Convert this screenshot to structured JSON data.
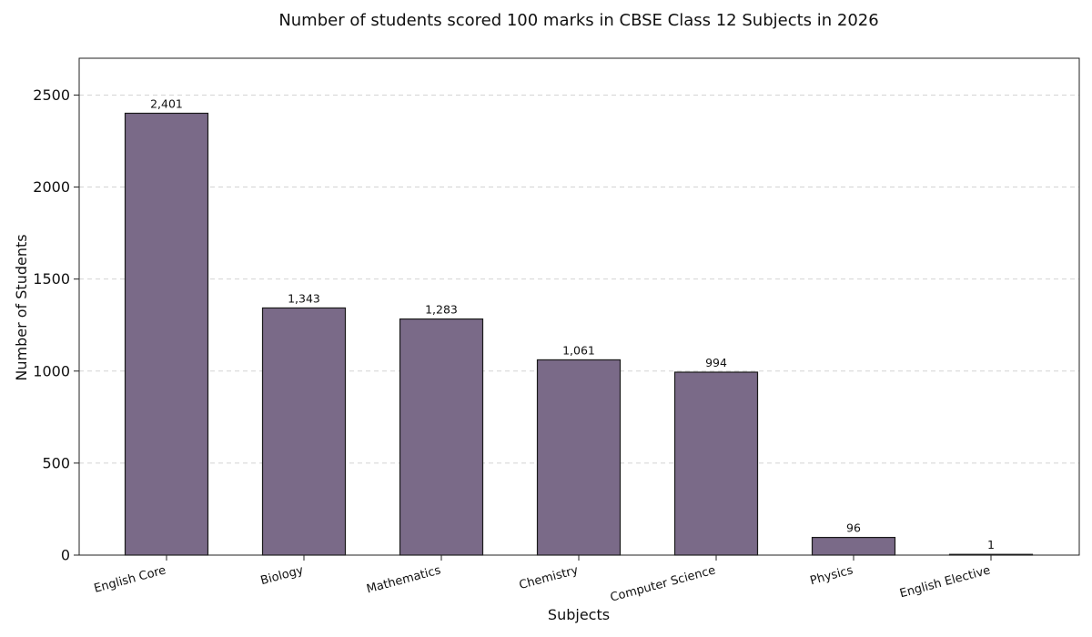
{
  "chart_data": {
    "type": "bar",
    "title": "Number of students scored 100 marks in CBSE Class 12 Subjects in 2026",
    "xlabel": "Subjects",
    "ylabel": "Number of Students",
    "categories": [
      "English Core",
      "Biology",
      "Mathematics",
      "Chemistry",
      "Computer Science",
      "Physics",
      "English Elective"
    ],
    "values": [
      2401,
      1343,
      1283,
      1061,
      994,
      96,
      1
    ],
    "value_labels": [
      "2,401",
      "1,343",
      "1,283",
      "1,061",
      "994",
      "96",
      "1"
    ],
    "ylim": [
      0,
      2700
    ],
    "yticks": [
      0,
      500,
      1000,
      1500,
      2000,
      2500
    ],
    "ytick_labels": [
      "0",
      "500",
      "1000",
      "1500",
      "2000",
      "2500"
    ],
    "grid": "horizontal dashed",
    "legend": "none",
    "colors": {
      "bar_fill": "#7a6a88",
      "bar_edge": "#1a1a1a",
      "grid": "#d4d4d4",
      "axis": "#222222"
    }
  }
}
